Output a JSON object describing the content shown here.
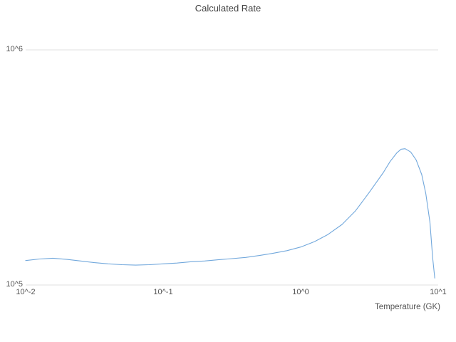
{
  "chart_data": {
    "type": "line",
    "title": "Calculated Rate",
    "xlabel": "Temperature (GK)",
    "ylabel": "",
    "x_scale": "log",
    "y_scale": "log",
    "xlim": [
      0.01,
      10
    ],
    "ylim": [
      100000,
      1000000
    ],
    "x_tick_labels": [
      "10^-2",
      "10^-1",
      "10^0",
      "10^1"
    ],
    "y_tick_labels": {
      "bottom": "10^5",
      "top": "10^6"
    },
    "grid": "horizontal-only",
    "legend": "none",
    "series": [
      {
        "name": "calculated-rate",
        "x": [
          0.01,
          0.0126,
          0.0158,
          0.02,
          0.0251,
          0.0316,
          0.0398,
          0.0501,
          0.0631,
          0.0794,
          0.1,
          0.126,
          0.158,
          0.2,
          0.251,
          0.316,
          0.398,
          0.501,
          0.631,
          0.794,
          1.0,
          1.26,
          1.58,
          2.0,
          2.51,
          3.16,
          3.98,
          4.47,
          5.01,
          5.37,
          5.75,
          6.31,
          6.92,
          7.59,
          8.13,
          8.71,
          9.12,
          9.44
        ],
        "y": [
          127000,
          129000,
          130000,
          128500,
          126500,
          124500,
          123000,
          122000,
          121500,
          122000,
          123000,
          124000,
          125500,
          126500,
          128000,
          129500,
          131000,
          133500,
          136500,
          140000,
          145000,
          153000,
          164000,
          181000,
          207000,
          248000,
          300000,
          335000,
          365000,
          378000,
          380000,
          368000,
          340000,
          295000,
          245000,
          185000,
          130000,
          107000
        ]
      }
    ]
  },
  "colors": {
    "line": "#72a8dc",
    "grid": "#e2e2e2",
    "tick_text": "#545454",
    "title_text": "#3f3f3f",
    "background": "#ffffff"
  }
}
